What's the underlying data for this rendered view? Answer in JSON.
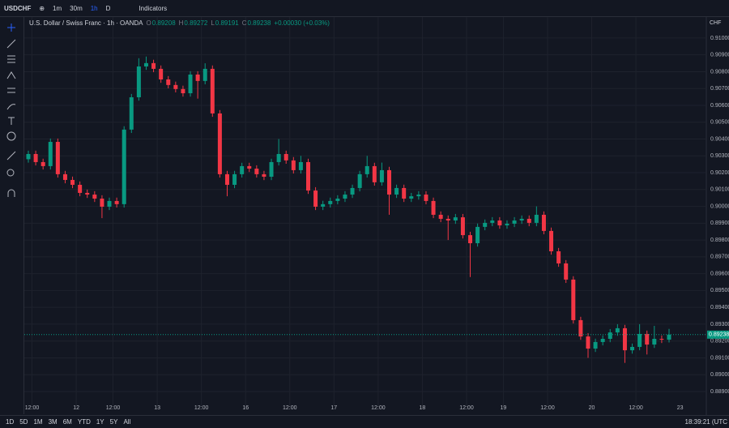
{
  "toolbar": {
    "symbol": "USDCHF",
    "intervals": [
      "1m",
      "30m",
      "1h",
      "D"
    ],
    "indicators": "Indicators"
  },
  "chart_data": {
    "type": "candlestick",
    "title": "U.S. Dollar / Swiss Franc · 1h · OANDA",
    "ohlc_labels": [
      "O",
      "H",
      "L",
      "C"
    ],
    "change": "+0.00030 (+0.03%)",
    "currency": "CHF",
    "categories": [
      null,
      "12:00",
      null,
      null,
      null,
      null,
      null,
      "12",
      null,
      null,
      null,
      null,
      "12:00",
      null,
      null,
      null,
      null,
      null,
      "13",
      null,
      null,
      null,
      null,
      null,
      "12:00",
      null,
      null,
      null,
      null,
      null,
      "16",
      null,
      null,
      null,
      null,
      null,
      "12:00",
      null,
      null,
      null,
      null,
      null,
      "17",
      null,
      null,
      null,
      null,
      null,
      "12:00",
      null,
      null,
      null,
      null,
      null,
      "18",
      null,
      null,
      null,
      null,
      null,
      "12:00",
      null,
      null,
      null,
      null,
      "19",
      null,
      null,
      null,
      null,
      null,
      "12:00",
      null,
      null,
      null,
      null,
      null,
      "20",
      null,
      null,
      null,
      null,
      null,
      "12:00",
      null,
      null,
      null,
      null
    ],
    "next_label": "23",
    "open": [
      0.9028,
      0.90311,
      0.90263,
      0.90239,
      0.90383,
      0.90191,
      0.90157,
      0.90128,
      0.9008,
      0.9007,
      0.90046,
      0.89998,
      0.90032,
      0.90013,
      0.90456,
      0.90648,
      0.90831,
      0.90851,
      0.90817,
      0.90754,
      0.90721,
      0.90697,
      0.90672,
      0.90783,
      0.90745,
      0.90817,
      0.90552,
      0.90191,
      0.90128,
      0.90191,
      0.90239,
      0.90224,
      0.90191,
      0.90176,
      0.90263,
      0.90311,
      0.90273,
      0.90215,
      0.90263,
      0.90094,
      0.89998,
      0.90013,
      0.90032,
      0.90046,
      0.9007,
      0.90109,
      0.90191,
      0.90239,
      0.90143,
      0.90215,
      0.9007,
      0.90109,
      0.90046,
      0.9006,
      0.9007,
      0.90032,
      0.8995,
      0.89926,
      0.89916,
      0.89935,
      0.89829,
      0.89781,
      0.89878,
      0.89902,
      0.89916,
      0.89887,
      0.89897,
      0.89916,
      0.89926,
      0.89902,
      0.8995,
      0.89854,
      0.89733,
      0.89661,
      0.89565,
      0.89324,
      0.89227,
      0.89155,
      0.89194,
      0.89213,
      0.89251,
      0.89276,
      0.89145,
      0.89165,
      0.89242,
      0.89179,
      0.89213,
      0.89208
    ],
    "high": [
      0.90331,
      0.90331,
      0.90283,
      0.90403,
      0.90403,
      0.90211,
      0.90177,
      0.90148,
      0.901,
      0.9009,
      0.90066,
      0.90052,
      0.90052,
      0.90476,
      0.90668,
      0.9088,
      0.9089,
      0.90871,
      0.90837,
      0.90774,
      0.90741,
      0.90717,
      0.90803,
      0.90803,
      0.9085,
      0.90837,
      0.90572,
      0.90211,
      0.90211,
      0.90259,
      0.90259,
      0.90244,
      0.90211,
      0.90283,
      0.904,
      0.90331,
      0.90293,
      0.903,
      0.90283,
      0.90114,
      0.90033,
      0.90052,
      0.90066,
      0.9009,
      0.90129,
      0.90211,
      0.903,
      0.90259,
      0.9026,
      0.90235,
      0.90129,
      0.90129,
      0.9008,
      0.9009,
      0.9009,
      0.90052,
      0.8997,
      0.89946,
      0.89955,
      0.89955,
      0.89849,
      0.89898,
      0.89922,
      0.89936,
      0.89936,
      0.89917,
      0.89936,
      0.89946,
      0.89946,
      0.9,
      0.8997,
      0.89874,
      0.89753,
      0.89681,
      0.89585,
      0.89344,
      0.89247,
      0.89214,
      0.89233,
      0.89271,
      0.893,
      0.89296,
      0.89185,
      0.893,
      0.89262,
      0.8929,
      0.89233,
      0.89272
    ],
    "low": [
      0.9026,
      0.90243,
      0.90219,
      0.90219,
      0.90171,
      0.90137,
      0.90108,
      0.9006,
      0.9005,
      0.90026,
      0.8993,
      0.89978,
      0.89993,
      0.89993,
      0.90436,
      0.90628,
      0.90811,
      0.90797,
      0.90734,
      0.90701,
      0.90677,
      0.90652,
      0.90652,
      0.9064,
      0.90725,
      0.90532,
      0.90171,
      0.9006,
      0.90108,
      0.90171,
      0.90204,
      0.90171,
      0.90156,
      0.90156,
      0.90243,
      0.90253,
      0.90195,
      0.90195,
      0.90074,
      0.89978,
      0.89978,
      0.89993,
      0.90012,
      0.90026,
      0.9005,
      0.90089,
      0.90171,
      0.90123,
      0.90123,
      0.8995,
      0.9005,
      0.90026,
      0.90026,
      0.9004,
      0.90012,
      0.8993,
      0.89906,
      0.898,
      0.89896,
      0.89809,
      0.8958,
      0.89761,
      0.89858,
      0.89882,
      0.89867,
      0.89867,
      0.89877,
      0.89896,
      0.89882,
      0.89882,
      0.89834,
      0.89713,
      0.89641,
      0.89545,
      0.89304,
      0.89207,
      0.891,
      0.89135,
      0.89174,
      0.89193,
      0.89231,
      0.8907,
      0.89125,
      0.89145,
      0.8912,
      0.89159,
      0.89188,
      0.89191
    ],
    "close": [
      0.90311,
      0.90263,
      0.90239,
      0.90383,
      0.90191,
      0.90157,
      0.90128,
      0.9008,
      0.9007,
      0.90046,
      0.89998,
      0.90032,
      0.90013,
      0.90456,
      0.90648,
      0.90831,
      0.90851,
      0.90817,
      0.90754,
      0.90721,
      0.90697,
      0.90672,
      0.90783,
      0.90745,
      0.90817,
      0.90552,
      0.90191,
      0.90128,
      0.90191,
      0.90239,
      0.90224,
      0.90191,
      0.90176,
      0.90263,
      0.90311,
      0.90273,
      0.90215,
      0.90263,
      0.90094,
      0.89998,
      0.90013,
      0.90032,
      0.90046,
      0.9007,
      0.90109,
      0.90191,
      0.90239,
      0.90143,
      0.90215,
      0.9007,
      0.90109,
      0.90046,
      0.9006,
      0.9007,
      0.90032,
      0.8995,
      0.89926,
      0.89916,
      0.89935,
      0.89829,
      0.89781,
      0.89878,
      0.89902,
      0.89916,
      0.89887,
      0.89897,
      0.89916,
      0.89926,
      0.89902,
      0.8995,
      0.89854,
      0.89733,
      0.89661,
      0.89565,
      0.89324,
      0.89227,
      0.89155,
      0.89194,
      0.89213,
      0.89251,
      0.89276,
      0.89145,
      0.89165,
      0.89242,
      0.89179,
      0.89213,
      0.89208,
      0.89238
    ],
    "up_color": "#089981",
    "down_color": "#f23645",
    "ylim": [
      0.88794,
      0.9112
    ],
    "yticks": [
      {
        "value": 0.889,
        "label": "0.88900"
      },
      {
        "value": 0.89,
        "label": "0.89000"
      },
      {
        "value": 0.891,
        "label": "0.89100"
      },
      {
        "value": 0.892,
        "label": "0.89200"
      },
      {
        "value": 0.893,
        "label": "0.89300"
      },
      {
        "value": 0.894,
        "label": "0.89400"
      },
      {
        "value": 0.895,
        "label": "0.89500"
      },
      {
        "value": 0.896,
        "label": "0.89600"
      },
      {
        "value": 0.897,
        "label": "0.89700"
      },
      {
        "value": 0.898,
        "label": "0.89800"
      },
      {
        "value": 0.899,
        "label": "0.89900"
      },
      {
        "value": 0.9,
        "label": "0.90000"
      },
      {
        "value": 0.901,
        "label": "0.90100"
      },
      {
        "value": 0.902,
        "label": "0.90200"
      },
      {
        "value": 0.903,
        "label": "0.90300"
      },
      {
        "value": 0.904,
        "label": "0.90400"
      },
      {
        "value": 0.905,
        "label": "0.90500"
      },
      {
        "value": 0.906,
        "label": "0.90600"
      },
      {
        "value": 0.907,
        "label": "0.90700"
      },
      {
        "value": 0.908,
        "label": "0.90800"
      },
      {
        "value": 0.909,
        "label": "0.90900"
      },
      {
        "value": 0.91,
        "label": "0.91000"
      }
    ],
    "grid": true
  },
  "footer": {
    "ranges": [
      "1D",
      "5D",
      "1M",
      "3M",
      "6M",
      "YTD",
      "1Y",
      "5Y",
      "All"
    ],
    "clock": "18:39:21 (UTC"
  }
}
